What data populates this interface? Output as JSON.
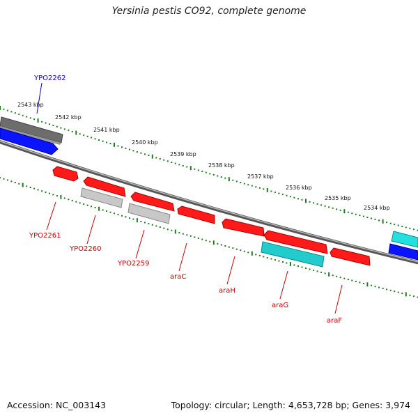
{
  "title": "Yersinia pestis CO92, complete genome",
  "footer": {
    "accession": "Accession: NC_003143",
    "summary": "Topology: circular; Length: 4,653,728 bp; Genes: 3,974"
  },
  "colors": {
    "backbone": "#7a7a7a",
    "tick_dots": "#1f7a1f",
    "gene_forward_label": "#0000cc",
    "gene_reverse_label": "#cc0000",
    "red_gene": "#ff1a1a",
    "grey_gene": "#bdbdbd",
    "dark_grey_gene": "#6d6d6d",
    "blue_gene": "#0a14ff",
    "cyan_gene": "#22cccc"
  },
  "scale": {
    "tick_labels": [
      "2543 kbp",
      "2542 kbp",
      "2541 kbp",
      "2540 kbp",
      "2539 kbp",
      "2538 kbp",
      "2537 kbp",
      "2536 kbp",
      "2535 kbp",
      "2534 kbp"
    ]
  },
  "genes": {
    "labels": [
      "YPO2262",
      "YPO2261",
      "YPO2260",
      "YPO2259",
      "araC",
      "araH",
      "araG",
      "araF"
    ]
  }
}
